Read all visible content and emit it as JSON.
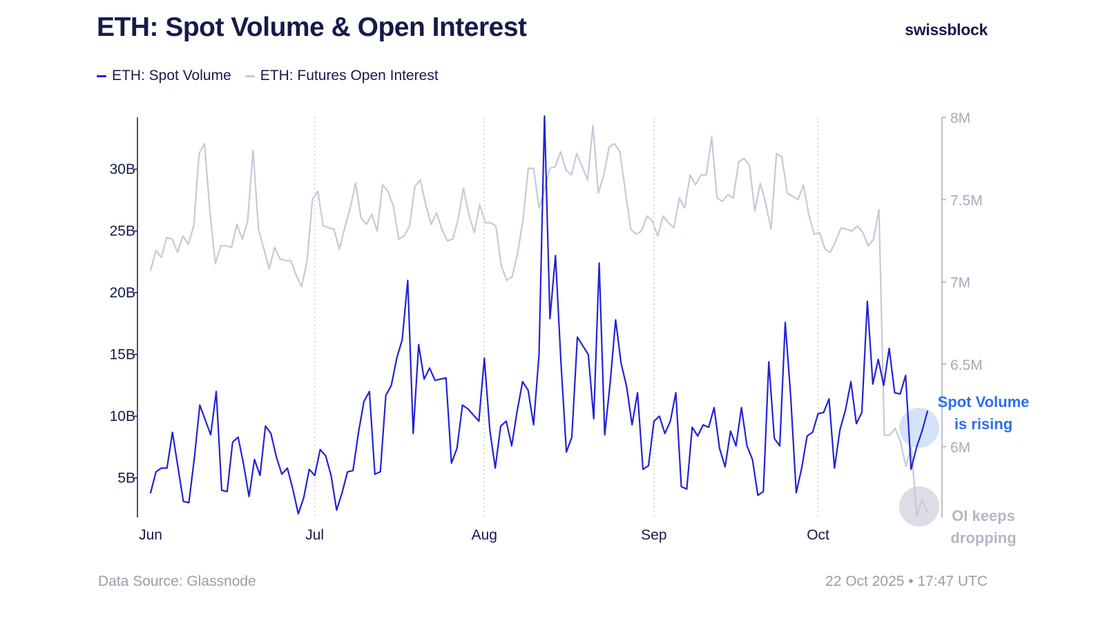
{
  "header": {
    "title": "ETH: Spot Volume & Open Interest",
    "brand": "swissblock"
  },
  "footer": {
    "source": "Data Source: Glassnode",
    "timestamp": "22 Oct 2025 • 17:47 UTC"
  },
  "colors": {
    "spot": "#2222d6",
    "oi": "#c7c8d9",
    "title": "#151a4a",
    "left_axis": "#151a4a",
    "right_axis": "#a8aab8",
    "annotation_spot": "#2a6ff0",
    "annotation_oi": "#b5b7c4",
    "highlight_spot": "#c5d9f7",
    "highlight_oi": "#d3d4de"
  },
  "chart_data": {
    "type": "line",
    "title": "ETH: Spot Volume & Open Interest",
    "legend_position": "top-left",
    "x": {
      "start_day": 0,
      "end_day": 142,
      "ticks": [
        {
          "day": 0,
          "label": "Jun"
        },
        {
          "day": 30,
          "label": "Jul"
        },
        {
          "day": 61,
          "label": "Aug"
        },
        {
          "day": 92,
          "label": "Sep"
        },
        {
          "day": 122,
          "label": "Oct"
        }
      ],
      "gridlines_at_days": [
        30,
        61,
        92,
        122
      ]
    },
    "y_left": {
      "min": 1.8,
      "max": 34.2,
      "ticks": [
        5,
        10,
        15,
        20,
        25,
        30
      ],
      "tick_labels": [
        "5B",
        "10B",
        "15B",
        "20B",
        "25B",
        "30B"
      ]
    },
    "y_right": {
      "min": 5.57,
      "max": 8.0,
      "ticks": [
        6.0,
        6.5,
        7.0,
        7.5,
        8.0
      ],
      "tick_labels": [
        "6M",
        "6.5M",
        "7M",
        "7.5M",
        "8M"
      ]
    },
    "series": [
      {
        "name": "ETH: Spot Volume",
        "axis": "left",
        "unit": "B USD",
        "values": [
          3.8,
          5.5,
          5.8,
          5.8,
          8.7,
          5.9,
          3.1,
          3.0,
          6.6,
          10.9,
          9.7,
          8.5,
          12.0,
          4.0,
          3.9,
          7.9,
          8.3,
          6.1,
          3.5,
          6.5,
          5.2,
          9.2,
          8.6,
          6.7,
          5.3,
          5.8,
          4.1,
          2.1,
          3.4,
          5.7,
          5.2,
          7.3,
          6.8,
          5.2,
          2.4,
          3.8,
          5.5,
          5.6,
          8.7,
          11.2,
          12.0,
          5.3,
          5.5,
          11.7,
          12.5,
          14.7,
          16.2,
          21.0,
          8.6,
          15.8,
          13.0,
          13.9,
          12.9,
          13.0,
          13.1,
          6.2,
          7.4,
          10.9,
          10.6,
          10.1,
          9.6,
          14.7,
          8.9,
          5.8,
          9.2,
          9.6,
          7.6,
          10.4,
          12.8,
          12.1,
          9.3,
          15.0,
          34.3,
          17.9,
          23.0,
          14.4,
          7.1,
          8.3,
          16.4,
          15.7,
          15.0,
          9.8,
          22.4,
          8.5,
          12.7,
          17.8,
          14.3,
          12.4,
          9.3,
          11.9,
          5.7,
          6.0,
          9.6,
          10.0,
          8.6,
          9.6,
          11.9,
          4.3,
          4.1,
          9.1,
          8.4,
          9.3,
          9.1,
          10.7,
          7.4,
          5.9,
          8.8,
          7.6,
          10.7,
          7.6,
          6.5,
          3.6,
          3.9,
          14.4,
          8.2,
          7.6,
          17.6,
          11.6,
          3.8,
          5.8,
          8.4,
          8.7,
          10.2,
          10.3,
          11.4,
          5.8,
          8.9,
          10.5,
          12.8,
          9.4,
          10.3,
          19.3,
          12.6,
          14.6,
          12.5,
          15.5,
          11.9,
          11.8,
          13.3,
          5.7,
          7.5,
          8.8,
          10.4
        ]
      },
      {
        "name": "ETH: Futures Open Interest",
        "axis": "right",
        "unit": "M ETH",
        "values": [
          7.07,
          7.19,
          7.15,
          7.27,
          7.26,
          7.18,
          7.28,
          7.23,
          7.34,
          7.78,
          7.84,
          7.43,
          7.11,
          7.22,
          7.22,
          7.21,
          7.35,
          7.26,
          7.37,
          7.8,
          7.32,
          7.2,
          7.08,
          7.21,
          7.14,
          7.13,
          7.13,
          7.04,
          6.97,
          7.13,
          7.5,
          7.55,
          7.34,
          7.33,
          7.32,
          7.2,
          7.33,
          7.45,
          7.6,
          7.39,
          7.35,
          7.41,
          7.31,
          7.59,
          7.55,
          7.46,
          7.26,
          7.28,
          7.34,
          7.58,
          7.62,
          7.47,
          7.35,
          7.42,
          7.32,
          7.25,
          7.26,
          7.38,
          7.57,
          7.41,
          7.3,
          7.47,
          7.36,
          7.36,
          7.34,
          7.1,
          7.01,
          7.03,
          7.17,
          7.37,
          7.69,
          7.69,
          7.45,
          7.56,
          7.69,
          7.7,
          7.79,
          7.68,
          7.65,
          7.78,
          7.7,
          7.62,
          7.95,
          7.54,
          7.65,
          7.82,
          7.84,
          7.79,
          7.55,
          7.32,
          7.29,
          7.31,
          7.4,
          7.37,
          7.28,
          7.4,
          7.36,
          7.33,
          7.51,
          7.45,
          7.65,
          7.59,
          7.65,
          7.65,
          7.88,
          7.51,
          7.49,
          7.53,
          7.51,
          7.73,
          7.75,
          7.71,
          7.43,
          7.6,
          7.48,
          7.32,
          7.78,
          7.76,
          7.54,
          7.52,
          7.5,
          7.59,
          7.41,
          7.29,
          7.3,
          7.2,
          7.18,
          7.25,
          7.33,
          7.32,
          7.31,
          7.34,
          7.3,
          7.22,
          7.26,
          7.44,
          6.07,
          6.07,
          6.11,
          6.03,
          5.88,
          6.0,
          5.58,
          5.68,
          5.6
        ]
      }
    ],
    "annotations": [
      {
        "lines": [
          "Spot Volume",
          "is rising"
        ],
        "series": "ETH: Spot Volume",
        "at_day": 141
      },
      {
        "lines": [
          "OI keeps",
          "dropping"
        ],
        "series": "ETH: Futures Open Interest",
        "at_day": 141
      }
    ]
  }
}
